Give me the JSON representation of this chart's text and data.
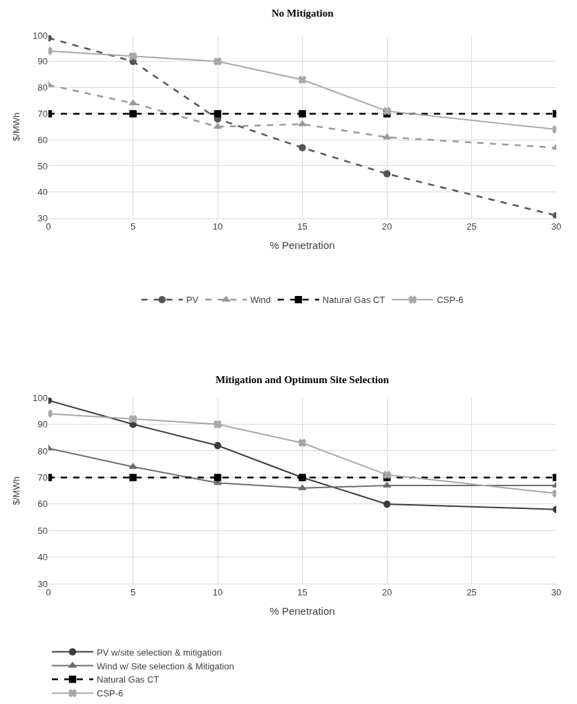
{
  "chart_data": [
    {
      "type": "line",
      "title": "No Mitigation",
      "xlabel": "% Penetration",
      "ylabel": "$/MWh",
      "x": [
        0,
        5,
        10,
        15,
        20,
        30
      ],
      "xlim": [
        0,
        30
      ],
      "xticks": [
        0,
        5,
        10,
        15,
        20,
        25,
        30
      ],
      "ylim": [
        30,
        100
      ],
      "yticks": [
        30,
        40,
        50,
        60,
        70,
        80,
        90,
        100
      ],
      "grid": true,
      "legend": "bottom",
      "series": [
        {
          "name": "PV",
          "color": "#555555",
          "values": [
            99,
            90,
            68,
            57,
            47,
            31
          ],
          "line_style": "dashed",
          "marker": "circle"
        },
        {
          "name": "Wind",
          "color": "#9a9a9a",
          "values": [
            81,
            74,
            65,
            66,
            61,
            57
          ],
          "line_style": "dashed",
          "marker": "triangle"
        },
        {
          "name": "Natural Gas CT",
          "color": "#000000",
          "values": [
            70,
            70,
            70,
            70,
            70,
            70
          ],
          "line_style": "dashed",
          "marker": "square"
        },
        {
          "name": "CSP-6",
          "color": "#a8a8a8",
          "values": [
            94,
            92,
            90,
            83,
            71,
            64
          ],
          "line_style": "solid",
          "marker": "cross"
        }
      ]
    },
    {
      "type": "line",
      "title": "Mitigation and Optimum Site Selection",
      "xlabel": "% Penetration",
      "ylabel": "$/MWh",
      "x": [
        0,
        5,
        10,
        15,
        20,
        30
      ],
      "xlim": [
        0,
        30
      ],
      "xticks": [
        0,
        5,
        10,
        15,
        20,
        25,
        30
      ],
      "ylim": [
        30,
        100
      ],
      "yticks": [
        30,
        40,
        50,
        60,
        70,
        80,
        90,
        100
      ],
      "grid": true,
      "legend": "bottom",
      "series": [
        {
          "name": "PV w/site selection & mitigation",
          "color": "#3c3c3c",
          "values": [
            99,
            90,
            82,
            70,
            60,
            58
          ],
          "line_style": "solid",
          "marker": "circle"
        },
        {
          "name": "Wind w/ Site selection & Mitigation",
          "color": "#6e6e6e",
          "values": [
            81,
            74,
            68,
            66,
            67,
            67
          ],
          "line_style": "solid",
          "marker": "triangle"
        },
        {
          "name": "Natural Gas CT",
          "color": "#000000",
          "values": [
            70,
            70,
            70,
            70,
            70,
            70
          ],
          "line_style": "dashed",
          "marker": "square"
        },
        {
          "name": "CSP-6",
          "color": "#a8a8a8",
          "values": [
            94,
            92,
            90,
            83,
            71,
            64
          ],
          "line_style": "solid",
          "marker": "cross"
        }
      ]
    }
  ]
}
